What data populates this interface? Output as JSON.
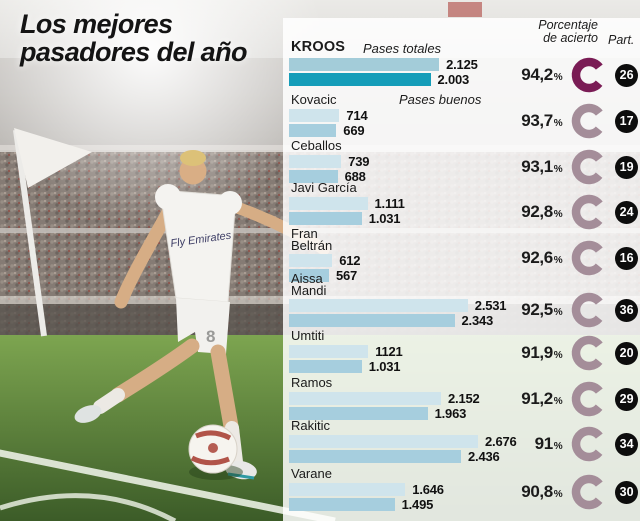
{
  "title": {
    "line1": "Los mejores",
    "line2": "pasadores del año"
  },
  "headers": {
    "porcentaje_line1": "Porcentaje",
    "porcentaje_line2": "de acierto",
    "part": "Part."
  },
  "legend": {
    "pases_totales": "Pases totales",
    "pases_buenos": "Pases buenos"
  },
  "labels": {
    "percent_sign": "%"
  },
  "photo": {
    "jersey_sponsor": "Fly Emirates",
    "shorts_number": "8"
  },
  "colors": {
    "bar_total": "#cfe4ec",
    "bar_good": "#a6cede",
    "bar_total_highlight": "#a3ccd9",
    "bar_good_highlight": "#159db9",
    "ring_highlight": "#7a1c55",
    "ring_normal": "#a48d99",
    "badge_bg": "#0d0d0d",
    "pitch_green": "#5d8440"
  },
  "rows": [
    {
      "name": "KROOS",
      "total": "2.125",
      "good": "2.003",
      "total_n": 2125,
      "good_n": 2003,
      "pct": "94,2",
      "part": "26"
    },
    {
      "name": "Kovacic",
      "total": "714",
      "good": "669",
      "total_n": 714,
      "good_n": 669,
      "pct": "93,7",
      "part": "17"
    },
    {
      "name": "Ceballos",
      "total": "739",
      "good": "688",
      "total_n": 739,
      "good_n": 688,
      "pct": "93,1",
      "part": "19"
    },
    {
      "name": "Javi García",
      "total": "1.111",
      "good": "1.031",
      "total_n": 1111,
      "good_n": 1031,
      "pct": "92,8",
      "part": "24"
    },
    {
      "name": "Fran Beltrán",
      "total": "612",
      "good": "567",
      "total_n": 612,
      "good_n": 567,
      "pct": "92,6",
      "part": "16"
    },
    {
      "name": "Aissa Mandi",
      "total": "2.531",
      "good": "2.343",
      "total_n": 2531,
      "good_n": 2343,
      "pct": "92,5",
      "part": "36"
    },
    {
      "name": "Umtiti",
      "total": "1121",
      "good": "1.031",
      "total_n": 1121,
      "good_n": 1031,
      "pct": "91,9",
      "part": "20"
    },
    {
      "name": "Ramos",
      "total": "2.152",
      "good": "1.963",
      "total_n": 2152,
      "good_n": 1963,
      "pct": "91,2",
      "part": "29"
    },
    {
      "name": "Rakitic",
      "total": "2.676",
      "good": "2.436",
      "total_n": 2676,
      "good_n": 2436,
      "pct": "91",
      "part": "34"
    },
    {
      "name": "Varane",
      "total": "1.646",
      "good": "1.495",
      "total_n": 1646,
      "good_n": 1495,
      "pct": "90,8",
      "part": "30"
    }
  ],
  "chart_data": {
    "type": "bar",
    "orientation": "horizontal",
    "title": "Los mejores pasadores del año",
    "categories": [
      "KROOS",
      "Kovacic",
      "Ceballos",
      "Javi García",
      "Fran Beltrán",
      "Aissa Mandi",
      "Umtiti",
      "Ramos",
      "Rakitic",
      "Varane"
    ],
    "series": [
      {
        "name": "Pases totales",
        "values": [
          2125,
          714,
          739,
          1111,
          612,
          2531,
          1121,
          2152,
          2676,
          1646
        ]
      },
      {
        "name": "Pases buenos",
        "values": [
          2003,
          669,
          688,
          1031,
          567,
          2343,
          1031,
          1963,
          2436,
          1495
        ]
      }
    ],
    "percent_acierto": [
      94.2,
      93.7,
      93.1,
      92.8,
      92.6,
      92.5,
      91.9,
      91.2,
      91,
      90.8
    ],
    "partidos": [
      26,
      17,
      19,
      24,
      16,
      36,
      20,
      29,
      34,
      30
    ],
    "max_value": 2676,
    "grid": false,
    "legend_position": "inline-top"
  }
}
